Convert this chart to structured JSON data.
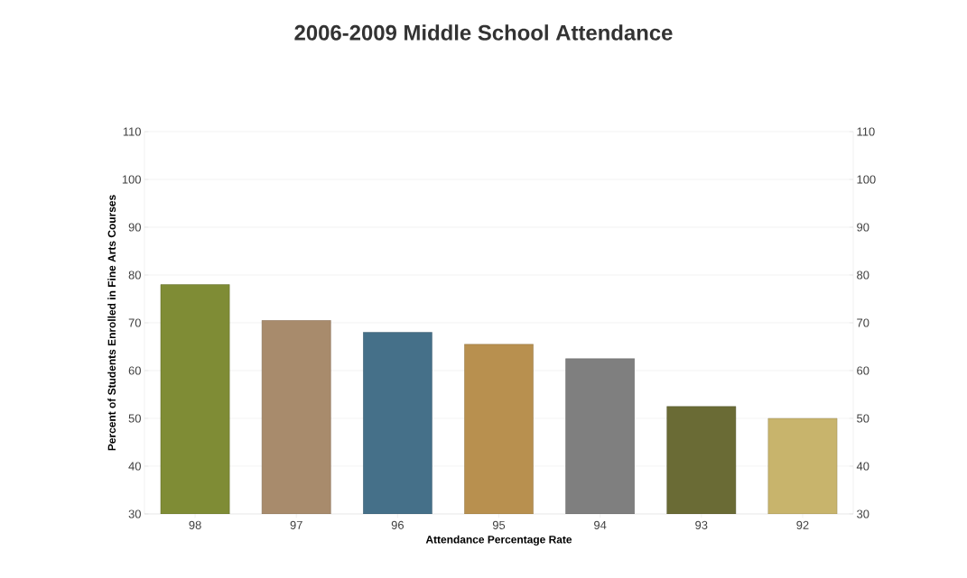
{
  "chart_data": {
    "type": "bar",
    "title": "2006-2009 Middle School Attendance",
    "xlabel": "Attendance Percentage Rate",
    "ylabel": "Percent of Students Enrolled in Fine Arts Courses",
    "categories": [
      "98",
      "97",
      "96",
      "95",
      "94",
      "93",
      "92"
    ],
    "values": [
      78,
      70.5,
      68,
      65.5,
      62.5,
      52.5,
      50
    ],
    "colors": [
      "#7f8c35",
      "#a88b6c",
      "#457089",
      "#b8904f",
      "#7f7f7f",
      "#6a6b35",
      "#c8b46c"
    ],
    "ylim": [
      30,
      110
    ],
    "yticks": [
      30,
      40,
      50,
      60,
      70,
      80,
      90,
      100,
      110
    ],
    "y2lim": [
      30,
      110
    ],
    "y2ticks": [
      30,
      40,
      50,
      60,
      70,
      80,
      90,
      100,
      110
    ],
    "grid": "y"
  }
}
